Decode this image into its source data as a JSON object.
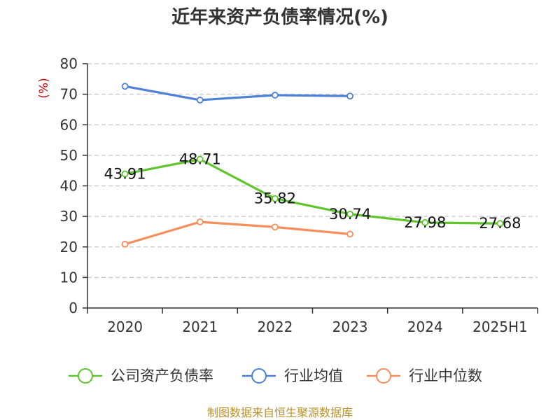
{
  "chart_data": {
    "type": "line",
    "title": "近年来资产负债率情况(%)",
    "y_unit": "(%)",
    "categories": [
      "2020",
      "2021",
      "2022",
      "2023",
      "2024",
      "2025H1"
    ],
    "ylim": [
      0,
      80
    ],
    "y_ticks": [
      0,
      10,
      20,
      30,
      40,
      50,
      60,
      70,
      80
    ],
    "grid": true,
    "legend_position": "bottom",
    "series": [
      {
        "name": "公司资产负债率",
        "color": "#5ec52c",
        "values": [
          43.91,
          48.71,
          35.82,
          30.74,
          27.98,
          27.68
        ],
        "data_labels": [
          "43.91",
          "48.71",
          "35.82",
          "30.74",
          "27.98",
          "27.68"
        ]
      },
      {
        "name": "行业均值",
        "color": "#4f80d8",
        "values": [
          72.6,
          68.1,
          69.7,
          69.4,
          null,
          null
        ]
      },
      {
        "name": "行业中位数",
        "color": "#f78d5a",
        "values": [
          20.9,
          28.2,
          26.5,
          24.2,
          null,
          null
        ]
      }
    ]
  },
  "source": "制图数据来自恒生聚源数据库"
}
